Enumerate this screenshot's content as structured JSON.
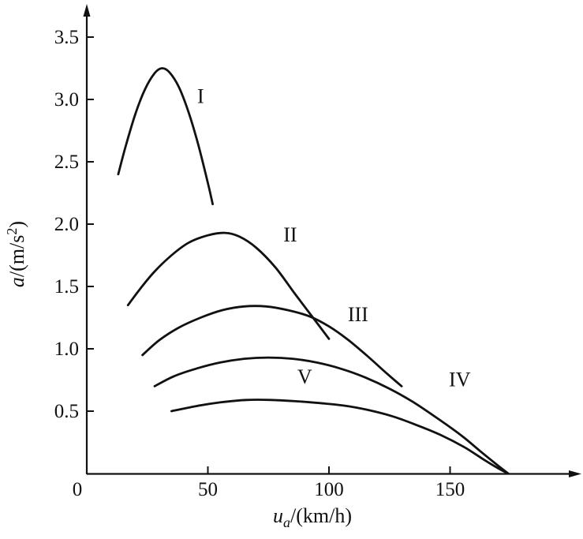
{
  "figure": {
    "background": "#ffffff",
    "line_color": "#111111"
  },
  "chart_data": {
    "type": "line",
    "title": "",
    "xlabel": {
      "var": "u",
      "sub": "a",
      "rest": "/(km/h)"
    },
    "ylabel": {
      "var": "a",
      "rest": "/(m/s",
      "sup": "2",
      "close": ")"
    },
    "xlim": [
      0,
      200
    ],
    "ylim": [
      0,
      3.7
    ],
    "grid": false,
    "legend_position": "inline-curve-labels",
    "origin_label": "0",
    "x_ticks": [
      {
        "v": 50,
        "label": "50"
      },
      {
        "v": 100,
        "label": "100"
      },
      {
        "v": 150,
        "label": "150"
      }
    ],
    "y_ticks": [
      {
        "v": 0.5,
        "label": "0.5"
      },
      {
        "v": 1.0,
        "label": "1.0"
      },
      {
        "v": 1.5,
        "label": "1.5"
      },
      {
        "v": 2.0,
        "label": "2.0"
      },
      {
        "v": 2.5,
        "label": "2.5"
      },
      {
        "v": 3.0,
        "label": "3.0"
      },
      {
        "v": 3.5,
        "label": "3.5"
      }
    ],
    "series": [
      {
        "name": "I",
        "label": "I",
        "label_pos": [
          47,
          2.97
        ],
        "points": [
          [
            13,
            2.4
          ],
          [
            16,
            2.62
          ],
          [
            20,
            2.88
          ],
          [
            24,
            3.08
          ],
          [
            28,
            3.21
          ],
          [
            31,
            3.25
          ],
          [
            34,
            3.22
          ],
          [
            38,
            3.1
          ],
          [
            42,
            2.9
          ],
          [
            46,
            2.64
          ],
          [
            50,
            2.33
          ],
          [
            52,
            2.16
          ]
        ]
      },
      {
        "name": "II",
        "label": "II",
        "label_pos": [
          84,
          1.86
        ],
        "points": [
          [
            17,
            1.35
          ],
          [
            22,
            1.48
          ],
          [
            28,
            1.62
          ],
          [
            35,
            1.75
          ],
          [
            42,
            1.85
          ],
          [
            50,
            1.91
          ],
          [
            57,
            1.93
          ],
          [
            63,
            1.9
          ],
          [
            70,
            1.81
          ],
          [
            78,
            1.65
          ],
          [
            86,
            1.44
          ],
          [
            93,
            1.26
          ],
          [
            100,
            1.08
          ]
        ]
      },
      {
        "name": "III",
        "label": "III",
        "label_pos": [
          112,
          1.22
        ],
        "points": [
          [
            23,
            0.95
          ],
          [
            30,
            1.07
          ],
          [
            38,
            1.17
          ],
          [
            47,
            1.25
          ],
          [
            56,
            1.31
          ],
          [
            65,
            1.34
          ],
          [
            74,
            1.34
          ],
          [
            83,
            1.31
          ],
          [
            92,
            1.26
          ],
          [
            100,
            1.18
          ],
          [
            108,
            1.07
          ],
          [
            116,
            0.94
          ],
          [
            124,
            0.8
          ],
          [
            130,
            0.7
          ]
        ]
      },
      {
        "name": "IV",
        "label": "IV",
        "label_pos": [
          154,
          0.7
        ],
        "points": [
          [
            28,
            0.7
          ],
          [
            36,
            0.78
          ],
          [
            45,
            0.84
          ],
          [
            55,
            0.89
          ],
          [
            65,
            0.92
          ],
          [
            75,
            0.93
          ],
          [
            85,
            0.92
          ],
          [
            95,
            0.89
          ],
          [
            105,
            0.84
          ],
          [
            115,
            0.77
          ],
          [
            125,
            0.68
          ],
          [
            135,
            0.57
          ],
          [
            145,
            0.44
          ],
          [
            155,
            0.3
          ],
          [
            163,
            0.17
          ],
          [
            170,
            0.06
          ],
          [
            174,
            0.0
          ]
        ]
      },
      {
        "name": "V",
        "label": "V",
        "label_pos": [
          90,
          0.72
        ],
        "points": [
          [
            35,
            0.5
          ],
          [
            45,
            0.54
          ],
          [
            55,
            0.57
          ],
          [
            66,
            0.59
          ],
          [
            76,
            0.59
          ],
          [
            86,
            0.58
          ],
          [
            96,
            0.565
          ],
          [
            106,
            0.545
          ],
          [
            116,
            0.51
          ],
          [
            126,
            0.46
          ],
          [
            136,
            0.39
          ],
          [
            146,
            0.31
          ],
          [
            156,
            0.21
          ],
          [
            164,
            0.11
          ],
          [
            170,
            0.04
          ],
          [
            174,
            0.0
          ]
        ]
      }
    ]
  }
}
